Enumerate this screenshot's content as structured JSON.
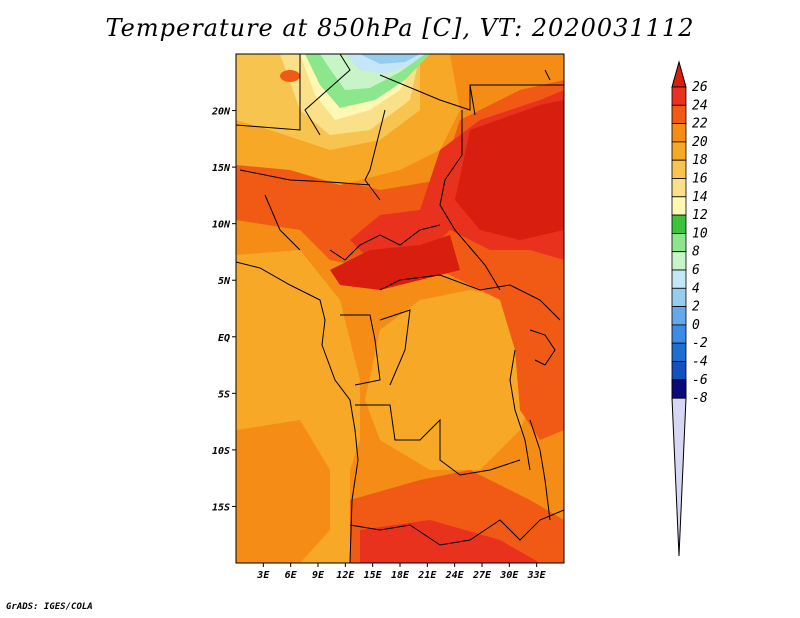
{
  "title": "Temperature at 850hPa [C], VT: 2020031112",
  "credit": "GrADS: IGES/COLA",
  "map": {
    "lon_range": [
      0,
      36
    ],
    "lat_range": [
      -20,
      25
    ],
    "lon_ticks": [
      "3E",
      "6E",
      "9E",
      "12E",
      "15E",
      "18E",
      "21E",
      "24E",
      "27E",
      "30E",
      "33E"
    ],
    "lat_ticks": [
      "20N",
      "15N",
      "10N",
      "5N",
      "EQ",
      "5S",
      "10S",
      "15S"
    ],
    "field": "Temperature at 850hPa",
    "units": "C"
  },
  "colorbar": {
    "levels": [
      "26",
      "24",
      "22",
      "20",
      "18",
      "16",
      "14",
      "12",
      "10",
      "8",
      "6",
      "4",
      "2",
      "0",
      "-2",
      "-4",
      "-6",
      "-8"
    ],
    "colors": [
      "#e8321e",
      "#f05a14",
      "#f58c16",
      "#f7a826",
      "#f8c450",
      "#fbe08a",
      "#fef8b4",
      "#3cc23c",
      "#8ce68c",
      "#c8f5c8",
      "#c4e6f6",
      "#96ccee",
      "#64aaea",
      "#3c8be6",
      "#1e6ed2",
      "#1450c0",
      "#0a32a0",
      "#0a0a78"
    ],
    "top_color": "#d81e0f",
    "bottom_color": "#d7d7f5"
  }
}
